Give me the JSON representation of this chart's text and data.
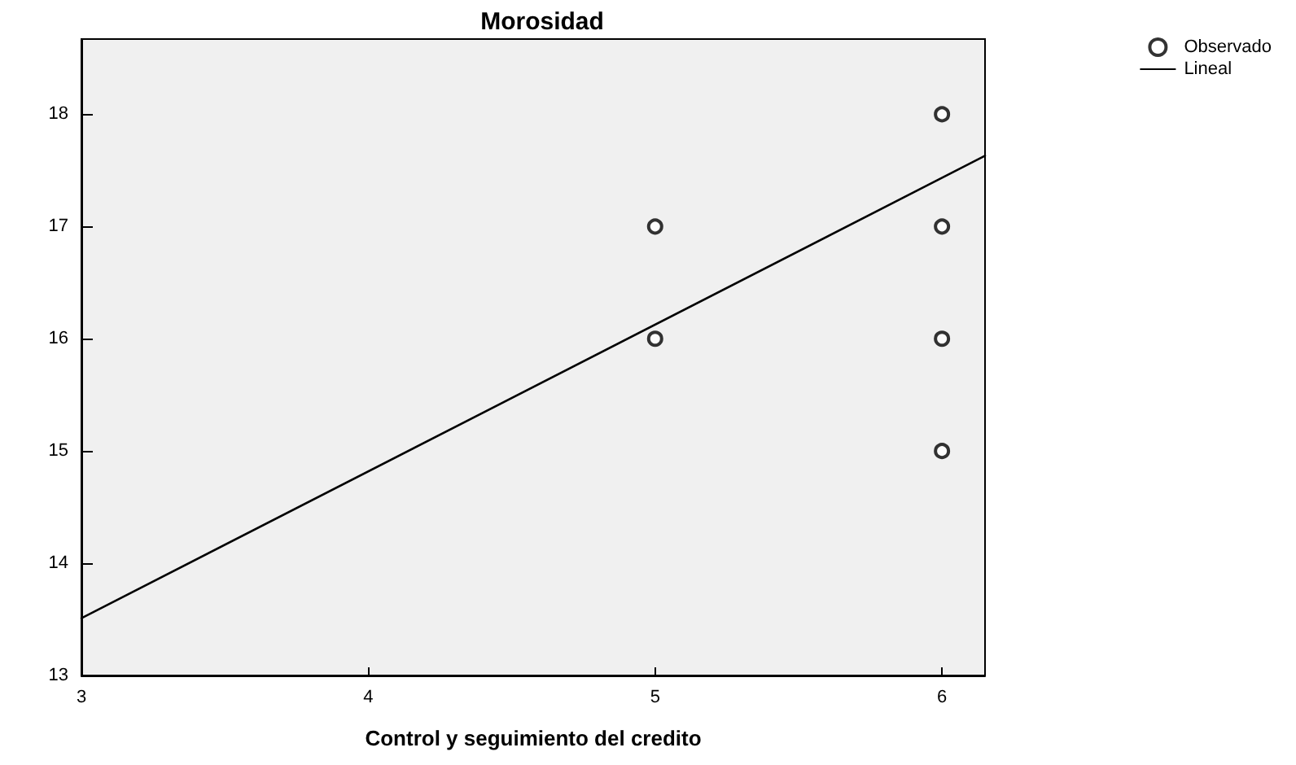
{
  "chart_data": {
    "type": "scatter",
    "title": "Morosidad",
    "xlabel": "Control y seguimiento del credito",
    "xlim": [
      3,
      6.15
    ],
    "xticks": [
      3,
      4,
      5,
      6
    ],
    "ylim": [
      13,
      18.67
    ],
    "yticks": [
      13,
      14,
      15,
      16,
      17,
      18
    ],
    "grid": false,
    "legend": "top right",
    "series": [
      {
        "name": "Observado",
        "type": "scatter",
        "color": "#000000",
        "marker": "circle",
        "x": [
          5,
          5,
          6,
          6,
          6,
          6
        ],
        "values": [
          17,
          16,
          18,
          17,
          16,
          15
        ]
      },
      {
        "name": "Lineal",
        "type": "line",
        "color": "#000000",
        "marker": "none",
        "line_style": "solid",
        "x": [
          3,
          6.15
        ],
        "values": [
          13.51,
          17.63
        ]
      }
    ]
  }
}
